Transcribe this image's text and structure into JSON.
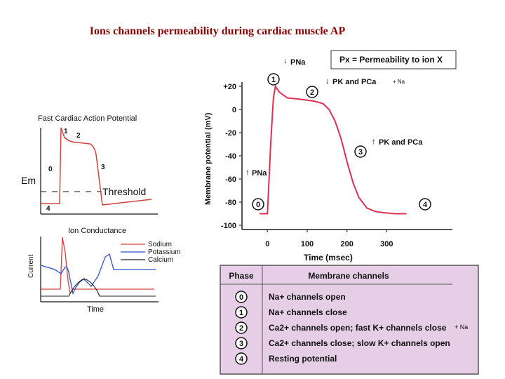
{
  "title": "Ions channels permeability during cardiac muscle AP",
  "fast_ap": {
    "title": "Fast Cardiac Action Potential",
    "em_label": "Em",
    "threshold_label": "Threshold",
    "phases": [
      "1",
      "2",
      "0",
      "3",
      "4"
    ]
  },
  "conductance": {
    "title": "Ion Conductance",
    "ylabel": "Current",
    "xlabel": "Time",
    "legend": [
      {
        "name": "Sodium",
        "color": "#d94040"
      },
      {
        "name": "Potassium",
        "color": "#3050d0"
      },
      {
        "name": "Calcium",
        "color": "#222222"
      }
    ]
  },
  "main_chart": {
    "legend_box": "Px = Permeability to ion X",
    "annotations": {
      "p_na_down": "PNa",
      "pk_pca_down": "PK and PCa",
      "na_note": "+ Na",
      "pk_pca_up": "PK and PCa",
      "p_na_up": "PNa"
    },
    "markers": [
      "1",
      "2",
      "3",
      "0",
      "4"
    ]
  },
  "chart_data": {
    "type": "line",
    "xlabel": "Time (msec)",
    "ylabel": "Membrane potential (mV)",
    "xlim": [
      -50,
      400
    ],
    "ylim": [
      -100,
      20
    ],
    "x_ticks": [
      "0",
      "100",
      "200",
      "300"
    ],
    "y_ticks": [
      "+20",
      "0",
      "-20",
      "-40",
      "-60",
      "-80",
      "-100"
    ],
    "series": [
      {
        "color": "#e03050",
        "x": [
          -20,
          0,
          8,
          15,
          20,
          30,
          50,
          80,
          100,
          120,
          140,
          155,
          170,
          185,
          200,
          215,
          230,
          250,
          270,
          290,
          320,
          350
        ],
        "y": [
          -90,
          -90,
          -30,
          10,
          20,
          15,
          10,
          9,
          8,
          7,
          5,
          0,
          -10,
          -25,
          -45,
          -63,
          -76,
          -85,
          -88,
          -89,
          -90,
          -90
        ]
      }
    ]
  },
  "phase_table": {
    "headers": [
      "Phase",
      "Membrane channels"
    ],
    "rows": [
      {
        "phase": "0",
        "text": "Na+ channels open"
      },
      {
        "phase": "1",
        "text": "Na+ channels close"
      },
      {
        "phase": "2",
        "text": "Ca2+ channels open; fast K+ channels close"
      },
      {
        "phase": "3",
        "text": "Ca2+ channels close; slow K+ channels open"
      },
      {
        "phase": "4",
        "text": "Resting potential"
      }
    ],
    "row2_note": "+ Na",
    "bg_color": "#e6cfe6"
  }
}
